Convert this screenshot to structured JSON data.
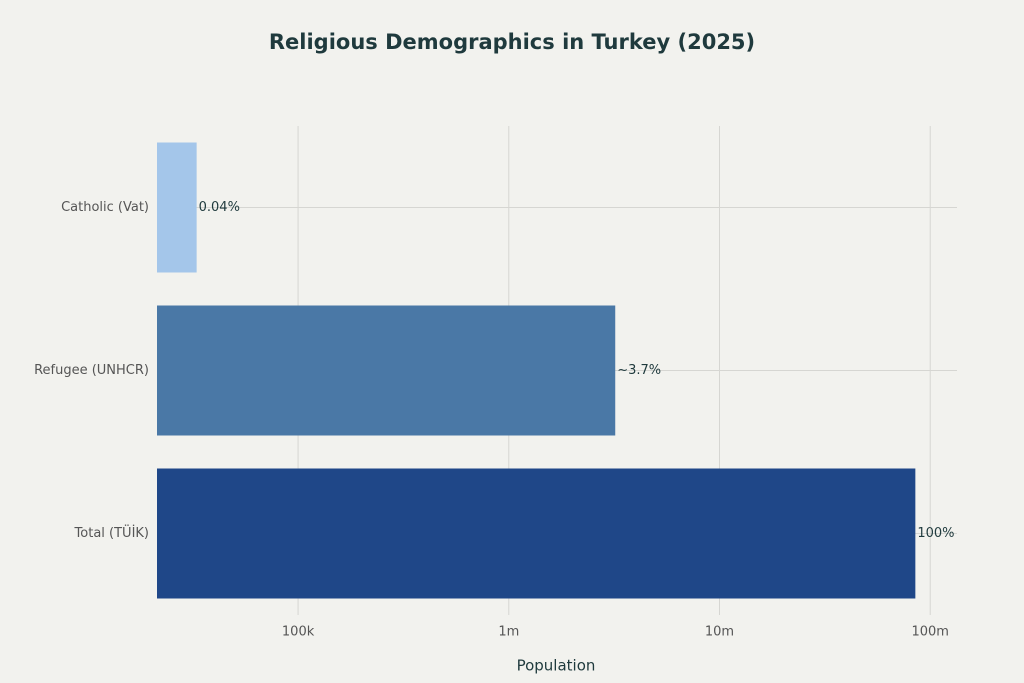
{
  "chart_data": {
    "type": "hbar",
    "title": "Religious Demographics in Turkey (2025)",
    "x_label": "Population",
    "categories": [
      "Catholic (Vat)",
      "Refugee (UNHCR)",
      "Total (TÜİK)"
    ],
    "values": [
      33000,
      3200000,
      85000000
    ],
    "annotations": [
      "0.04%",
      "~3.7%",
      "100%"
    ],
    "colors": [
      "#a4c6ea",
      "#4a78a6",
      "#1f4788"
    ],
    "xlim": [
      21400,
      134000000
    ],
    "log_x": true,
    "grid": true,
    "xticks": [
      {
        "value": 100000,
        "label": "100k"
      },
      {
        "value": 1000000,
        "label": "1m"
      },
      {
        "value": 10000000,
        "label": "10m"
      },
      {
        "value": 100000000,
        "label": "100m"
      }
    ]
  }
}
